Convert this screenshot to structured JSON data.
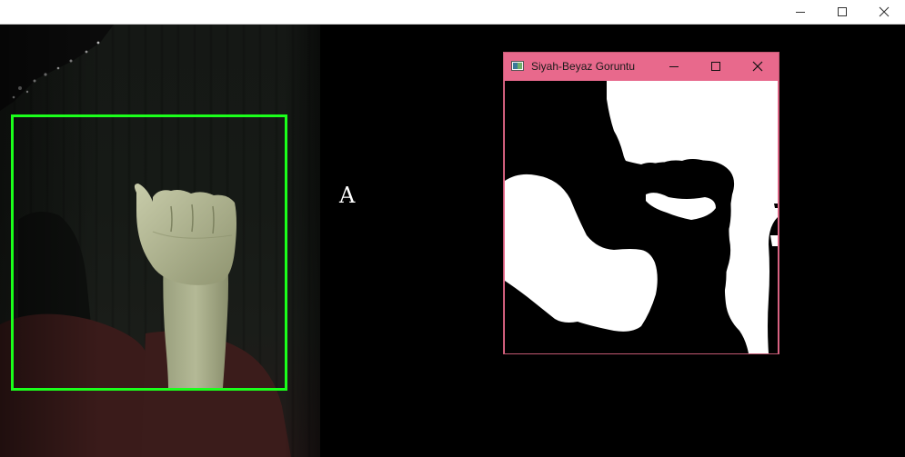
{
  "main_window": {
    "controls": [
      "minimize",
      "maximize",
      "close"
    ]
  },
  "webcam": {
    "roi_color": "#1bff1b"
  },
  "prediction": {
    "letter": "A"
  },
  "child_window": {
    "title": "Siyah-Beyaz Goruntu",
    "titlebar_color": "#e8698c",
    "controls": [
      "minimize",
      "maximize",
      "close"
    ]
  }
}
